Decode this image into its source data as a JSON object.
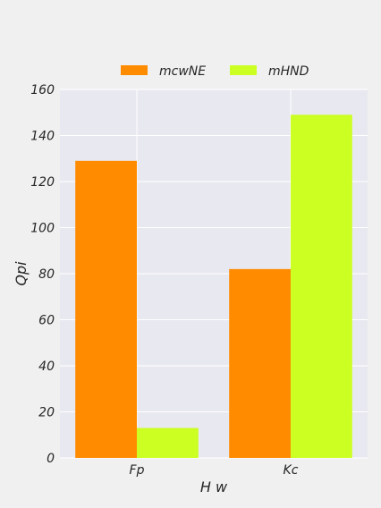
{
  "chart_data": {
    "type": "bar",
    "categories": [
      "Fp",
      "Kc"
    ],
    "series": [
      {
        "name": "mcwNE",
        "values": [
          129,
          82
        ],
        "color": "#ff8c00"
      },
      {
        "name": "mHND",
        "values": [
          13,
          149
        ],
        "color": "#ccff22"
      }
    ],
    "xlabel": "H w",
    "ylabel": "Qpi",
    "ylim": [
      0,
      160
    ],
    "yticks": [
      0,
      20,
      40,
      60,
      80,
      100,
      120,
      140,
      160
    ],
    "grid": true,
    "legend_position": "top-center",
    "plot_background": "#e8e8f0",
    "page_background": "#f0f0f0"
  }
}
